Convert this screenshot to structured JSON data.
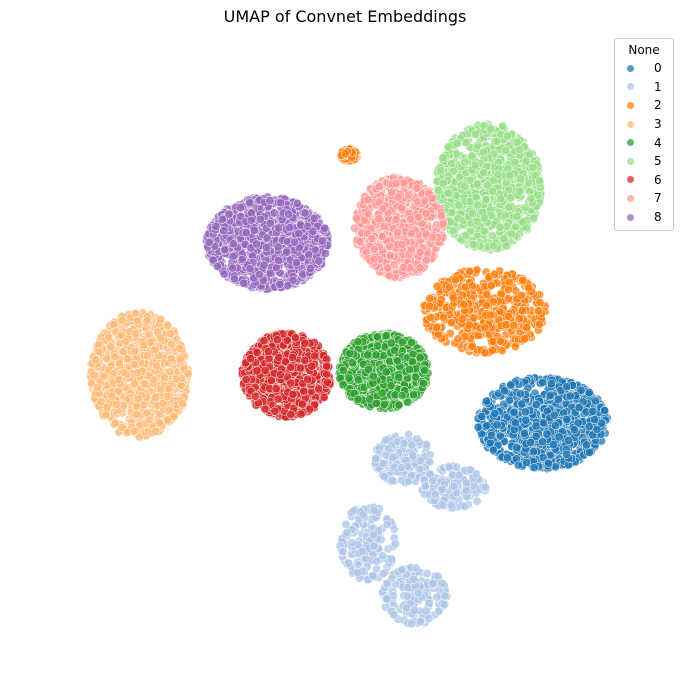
{
  "chart_data": {
    "type": "scatter",
    "title": "UMAP of Convnet Embeddings",
    "xlabel": "",
    "ylabel": "",
    "axes_visible": false,
    "grid": false,
    "legend": {
      "title": "None",
      "placement": "top-right",
      "entries": [
        "0",
        "1",
        "2",
        "3",
        "4",
        "5",
        "6",
        "7",
        "8"
      ]
    },
    "x_range": [
      -0.5,
      15.5
    ],
    "y_range": [
      -0.5,
      14.5
    ],
    "series": [
      {
        "name": "0",
        "color": "#1f77b4",
        "n_points": 900,
        "clusters": [
          {
            "center": [
              12.6,
              5.3
            ],
            "spread": [
              1.6,
              1.1
            ]
          }
        ]
      },
      {
        "name": "1",
        "color": "#aec7e8",
        "n_points": 650,
        "clusters": [
          {
            "center": [
              9.0,
              4.4
            ],
            "spread": [
              0.7,
              0.6
            ]
          },
          {
            "center": [
              10.3,
              3.7
            ],
            "spread": [
              0.8,
              0.5
            ]
          },
          {
            "center": [
              8.1,
              2.3
            ],
            "spread": [
              0.7,
              0.9
            ]
          },
          {
            "center": [
              9.3,
              1.0
            ],
            "spread": [
              0.8,
              0.7
            ]
          }
        ]
      },
      {
        "name": "2",
        "color": "#ff7f0e",
        "n_points": 950,
        "clusters": [
          {
            "center": [
              11.1,
              8.1
            ],
            "spread": [
              1.5,
              1.0
            ]
          },
          {
            "center": [
              7.6,
              12.0
            ],
            "spread": [
              0.2,
              0.15
            ]
          }
        ]
      },
      {
        "name": "3",
        "color": "#ffbb78",
        "n_points": 850,
        "clusters": [
          {
            "center": [
              2.2,
              6.5
            ],
            "spread": [
              1.2,
              1.5
            ]
          }
        ]
      },
      {
        "name": "4",
        "color": "#2ca02c",
        "n_points": 800,
        "clusters": [
          {
            "center": [
              8.5,
              6.6
            ],
            "spread": [
              1.1,
              0.9
            ]
          }
        ]
      },
      {
        "name": "5",
        "color": "#98df8a",
        "n_points": 1000,
        "clusters": [
          {
            "center": [
              11.2,
              11.2
            ],
            "spread": [
              1.3,
              1.5
            ]
          }
        ]
      },
      {
        "name": "6",
        "color": "#d62728",
        "n_points": 800,
        "clusters": [
          {
            "center": [
              6.0,
              6.5
            ],
            "spread": [
              1.1,
              1.0
            ]
          }
        ]
      },
      {
        "name": "7",
        "color": "#ff9896",
        "n_points": 700,
        "clusters": [
          {
            "center": [
              8.9,
              10.2
            ],
            "spread": [
              1.1,
              1.2
            ]
          }
        ]
      },
      {
        "name": "8",
        "color": "#9467bd",
        "n_points": 1100,
        "clusters": [
          {
            "center": [
              5.5,
              9.8
            ],
            "spread": [
              1.5,
              1.1
            ]
          }
        ]
      }
    ]
  }
}
